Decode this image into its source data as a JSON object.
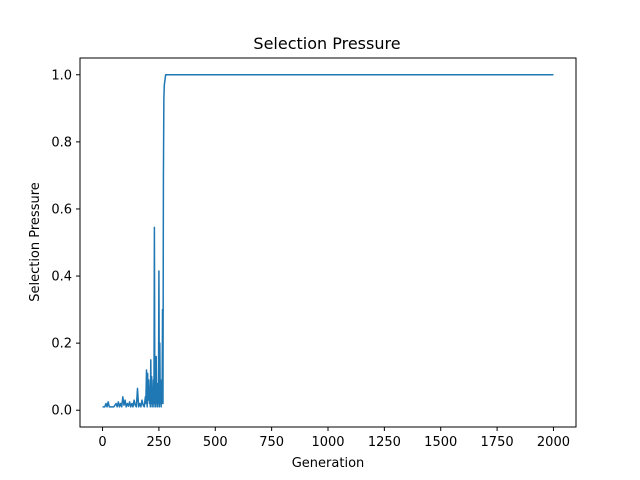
{
  "chart_data": {
    "type": "line",
    "title": "Selection Pressure",
    "xlabel": "Generation",
    "ylabel": "Selection Pressure",
    "xlim": [
      -100,
      2100
    ],
    "ylim": [
      -0.05,
      1.05
    ],
    "xticks": [
      0,
      250,
      500,
      750,
      1000,
      1250,
      1500,
      1750,
      2000
    ],
    "yticks": [
      0.0,
      0.2,
      0.4,
      0.6,
      0.8,
      1.0
    ],
    "xtick_labels": [
      "0",
      "250",
      "500",
      "750",
      "1000",
      "1250",
      "1500",
      "1750",
      "2000"
    ],
    "ytick_labels": [
      "0.0",
      "0.2",
      "0.4",
      "0.6",
      "0.8",
      "1.0"
    ],
    "grid": false,
    "colors": {
      "line": "#1f77b4"
    },
    "series": [
      {
        "x": [
          0,
          10,
          15,
          20,
          25,
          30,
          40,
          50,
          55,
          60,
          65,
          70,
          75,
          80,
          85,
          90,
          95,
          100,
          105,
          110,
          115,
          120,
          125,
          130,
          135,
          140,
          145,
          150,
          155,
          160,
          165,
          170,
          175,
          180,
          185,
          190,
          192,
          195,
          198,
          200,
          202,
          205,
          208,
          210,
          212,
          214,
          216,
          218,
          220,
          222,
          224,
          226,
          228,
          230,
          232,
          234,
          236,
          238,
          240,
          242,
          244,
          246,
          248,
          250,
          252,
          254,
          256,
          258,
          260,
          262,
          264,
          266,
          268,
          270,
          272,
          274,
          276,
          278,
          280,
          282,
          284,
          286,
          290,
          300,
          400,
          600,
          800,
          1000,
          1200,
          1400,
          1600,
          1800,
          2000
        ],
        "y": [
          0.01,
          0.01,
          0.02,
          0.01,
          0.025,
          0.01,
          0.01,
          0.01,
          0.015,
          0.02,
          0.01,
          0.025,
          0.01,
          0.02,
          0.01,
          0.04,
          0.015,
          0.03,
          0.01,
          0.02,
          0.012,
          0.025,
          0.01,
          0.02,
          0.01,
          0.03,
          0.015,
          0.01,
          0.065,
          0.01,
          0.02,
          0.01,
          0.03,
          0.015,
          0.01,
          0.04,
          0.02,
          0.12,
          0.01,
          0.11,
          0.03,
          0.09,
          0.02,
          0.07,
          0.01,
          0.15,
          0.02,
          0.1,
          0.01,
          0.06,
          0.02,
          0.09,
          0.01,
          0.545,
          0.02,
          0.12,
          0.01,
          0.16,
          0.02,
          0.08,
          0.01,
          0.05,
          0.02,
          0.415,
          0.01,
          0.2,
          0.02,
          0.09,
          0.01,
          0.05,
          0.02,
          0.3,
          0.02,
          0.7,
          0.93,
          0.97,
          0.98,
          0.99,
          1.0,
          1.0,
          1.0,
          1.0,
          1.0,
          1.0,
          1.0,
          1.0,
          1.0,
          1.0,
          1.0,
          1.0,
          1.0,
          1.0,
          1.0
        ]
      }
    ]
  }
}
